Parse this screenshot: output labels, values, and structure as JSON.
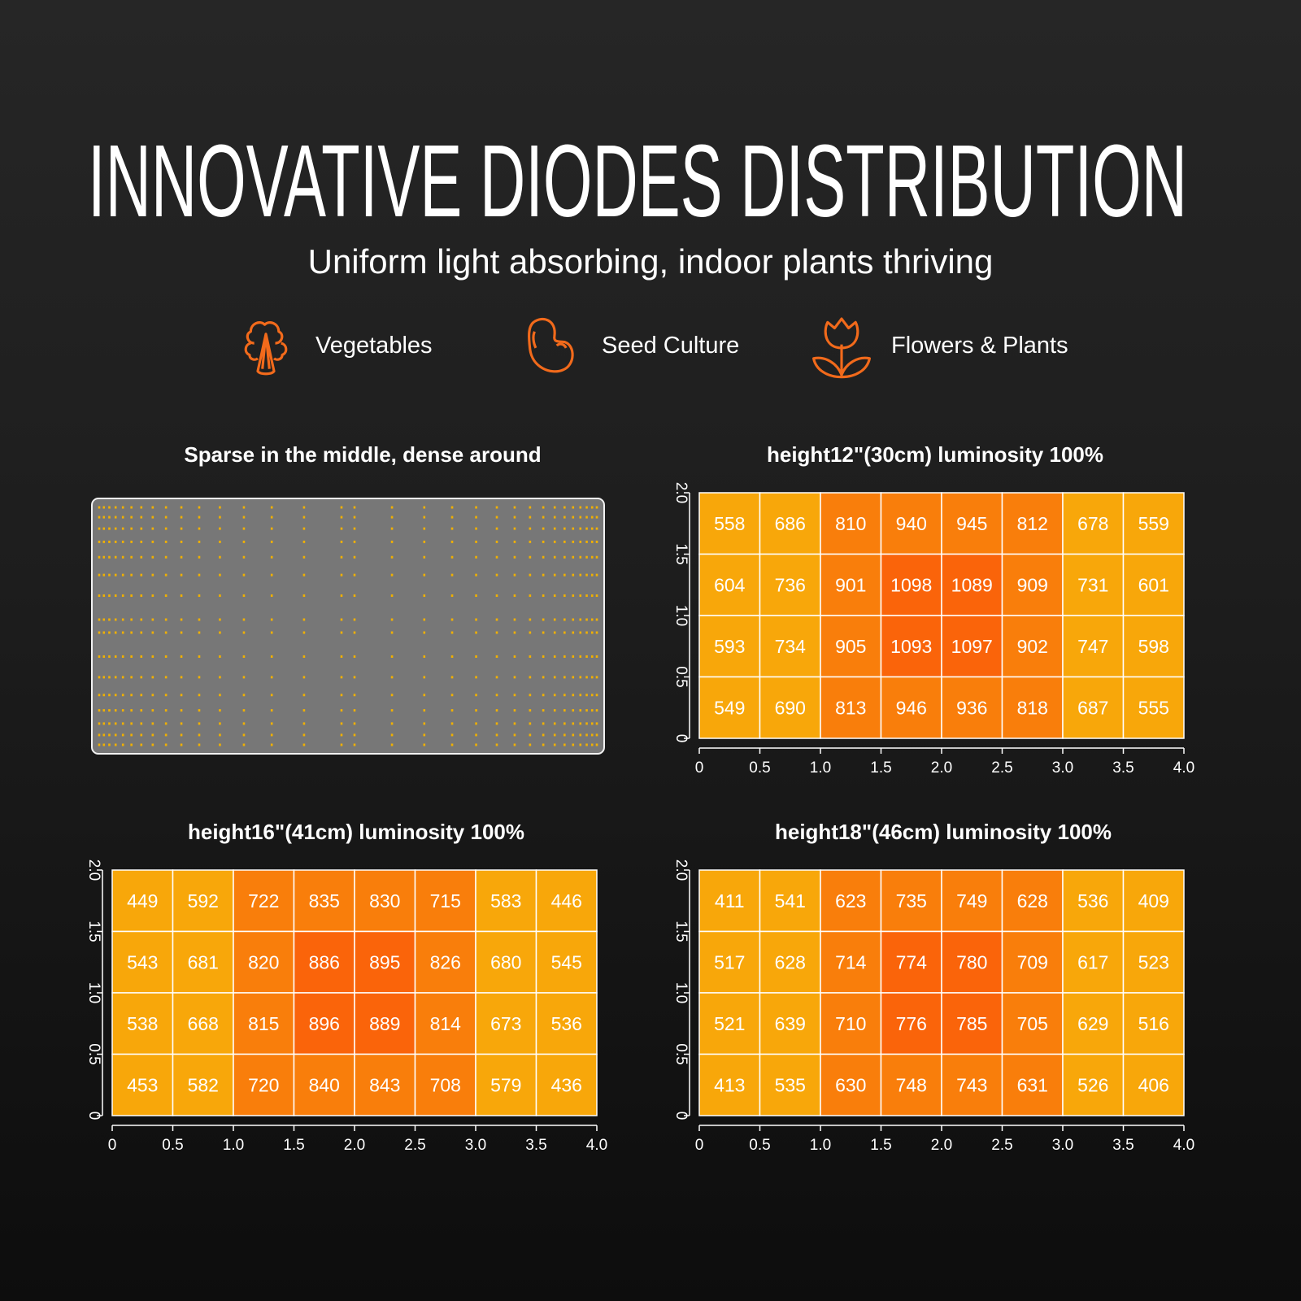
{
  "header": {
    "title": "INNOVATIVE DIODES DISTRIBUTION",
    "subtitle": "Uniform light absorbing, indoor plants thriving"
  },
  "categories": [
    {
      "label": "Vegetables",
      "icon": "broccoli-icon"
    },
    {
      "label": "Seed Culture",
      "icon": "bean-icon"
    },
    {
      "label": "Flowers & Plants",
      "icon": "tulip-icon"
    }
  ],
  "colors": {
    "accent": "#f26a1b",
    "low": "#f8a70a",
    "mid": "#f97e0b",
    "high": "#fa640a",
    "led": "#f0b000",
    "panel": "#777777"
  },
  "panel": {
    "title": "Sparse in the middle, dense around"
  },
  "chart_data": [
    {
      "type": "heatmap",
      "title": "height12\"(30cm)   luminosity 100%",
      "xlim": [
        0,
        4.0
      ],
      "ylim": [
        0,
        2.0
      ],
      "xticks": [
        "0",
        "0.5",
        "1.0",
        "1.5",
        "2.0",
        "2.5",
        "3.0",
        "3.5",
        "4.0"
      ],
      "yticks": [
        "0",
        "0.5",
        "1.0",
        "1.5",
        "2.0"
      ],
      "values": [
        [
          558,
          686,
          810,
          940,
          945,
          812,
          678,
          559
        ],
        [
          604,
          736,
          901,
          1098,
          1089,
          909,
          731,
          601
        ],
        [
          593,
          734,
          905,
          1093,
          1097,
          902,
          747,
          598
        ],
        [
          549,
          690,
          813,
          946,
          936,
          818,
          687,
          555
        ]
      ],
      "levels": [
        [
          0,
          0,
          1,
          1,
          1,
          1,
          0,
          0
        ],
        [
          0,
          0,
          1,
          2,
          2,
          1,
          0,
          0
        ],
        [
          0,
          0,
          1,
          2,
          2,
          1,
          0,
          0
        ],
        [
          0,
          0,
          1,
          1,
          1,
          1,
          0,
          0
        ]
      ]
    },
    {
      "type": "heatmap",
      "title": "height16\"(41cm)   luminosity 100%",
      "xlim": [
        0,
        4.0
      ],
      "ylim": [
        0,
        2.0
      ],
      "xticks": [
        "0",
        "0.5",
        "1.0",
        "1.5",
        "2.0",
        "2.5",
        "3.0",
        "3.5",
        "4.0"
      ],
      "yticks": [
        "0",
        "0.5",
        "1.0",
        "1.5",
        "2.0"
      ],
      "values": [
        [
          449,
          592,
          722,
          835,
          830,
          715,
          583,
          446
        ],
        [
          543,
          681,
          820,
          886,
          895,
          826,
          680,
          545
        ],
        [
          538,
          668,
          815,
          896,
          889,
          814,
          673,
          536
        ],
        [
          453,
          582,
          720,
          840,
          843,
          708,
          579,
          436
        ]
      ],
      "levels": [
        [
          0,
          0,
          1,
          1,
          1,
          1,
          0,
          0
        ],
        [
          0,
          0,
          1,
          2,
          2,
          1,
          0,
          0
        ],
        [
          0,
          0,
          1,
          2,
          2,
          1,
          0,
          0
        ],
        [
          0,
          0,
          1,
          1,
          1,
          1,
          0,
          0
        ]
      ]
    },
    {
      "type": "heatmap",
      "title": "height18\"(46cm)   luminosity 100%",
      "xlim": [
        0,
        4.0
      ],
      "ylim": [
        0,
        2.0
      ],
      "xticks": [
        "0",
        "0.5",
        "1.0",
        "1.5",
        "2.0",
        "2.5",
        "3.0",
        "3.5",
        "4.0"
      ],
      "yticks": [
        "0",
        "0.5",
        "1.0",
        "1.5",
        "2.0"
      ],
      "values": [
        [
          411,
          541,
          623,
          735,
          749,
          628,
          536,
          409
        ],
        [
          517,
          628,
          714,
          774,
          780,
          709,
          617,
          523
        ],
        [
          521,
          639,
          710,
          776,
          785,
          705,
          629,
          516
        ],
        [
          413,
          535,
          630,
          748,
          743,
          631,
          526,
          406
        ]
      ],
      "levels": [
        [
          0,
          0,
          1,
          1,
          1,
          1,
          0,
          0
        ],
        [
          0,
          0,
          1,
          2,
          2,
          1,
          0,
          0
        ],
        [
          0,
          0,
          1,
          2,
          2,
          1,
          0,
          0
        ],
        [
          0,
          0,
          1,
          1,
          1,
          1,
          0,
          0
        ]
      ]
    }
  ]
}
